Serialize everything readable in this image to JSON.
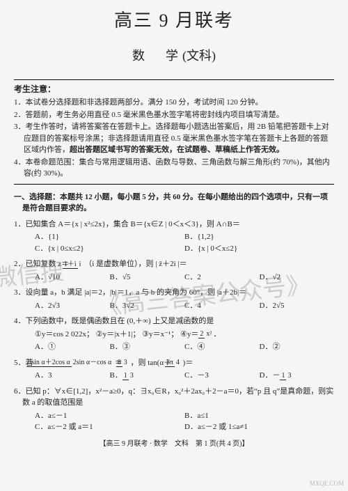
{
  "header": {
    "title": "高三 9 月联考",
    "subject": "数　学",
    "subject_paren": "(文科)"
  },
  "notice": {
    "head": "考生注意：",
    "items": [
      "1．本试卷分选择题和非选择题两部分。满分 150 分，考试时间 120 分钟。",
      "2．答题前，考生务必用直径 0.5 毫米黑色墨水签字笔将密封线内项目填写清楚。",
      "3．考生作答时，请将答案答在答题卡上。选择题每小题选出答案后，用 2B 铅笔把答题卡上对应题目的答案标号涂黑；非选择题请用直径 0.5 毫米黑色墨水签字笔在答题卡上各题的答题区域内作答，",
      "4．本卷命题范围：集合与常用逻辑用语、函数与导数、三角函数与解三角形(约 70%)，其他内容(约 30%)。"
    ],
    "bold_tail": "超出答题区域书写的答案无效，在试题卷、草稿纸上作答无效。"
  },
  "section1": {
    "head": "一、选择题：本题共 12 小题，每小题 5 分，共 60 分。在每小题给出的四个选项中，只有一项是符合题目要求的。"
  },
  "q1": {
    "stem": "1．已知集合 A＝{x | x²≤2x}，集合 B＝{x∈Z | 0＜x＜3}，则 A∩B＝",
    "a": "A．{1}",
    "b": "B．{1,2}",
    "c": "C．{x | 0≤x≤2}",
    "d": "D．{x | 0＜x≤2}"
  },
  "q2": {
    "stem_pre": "2．已知复数 z＝",
    "num": "1＋i",
    "den": "i",
    "stem_post": "（i 是虚数单位），则 | z̄＋2i |＝",
    "a": "A．√10",
    "b": "B．√5",
    "c": "C．2",
    "d": "D．√2"
  },
  "q3": {
    "stem": "3．设向量 a，b 满足 |a|＝2，|b|＝1，a 与 b 的夹角为 60°，则 |a＋2b|＝",
    "a": "A．2√3",
    "b": "B．3√2",
    "c": "C．4",
    "d": "D．2√5"
  },
  "q4": {
    "stem": "4．下列函数中，既是偶函数且在 (0,＋∞) 上又是减函数的是",
    "t1": "①y＝cos 2 022x；",
    "t2": "②y＝|x＋1|；",
    "t3": "③y＝x⁻¹；",
    "t4_pre": "④y＝",
    "t4_num": "2",
    "t4_den": "x²",
    "t4_post": "．",
    "a": "A．①",
    "b": "B．③",
    "c": "C．④",
    "d": "D．②"
  },
  "q5": {
    "stem_pre": "5．若 ",
    "num": "3sin α＋2cos α",
    "den": "2sin α－cos α",
    "eq": "＝",
    "num2": "8",
    "den2": "3",
    "mid": "，则 tan(α＋",
    "num3": "3π",
    "den3": "4",
    "post": ")＝",
    "a": "A．3",
    "b_pre": "B．",
    "b_num": "1",
    "b_den": "3",
    "c": "C．－3",
    "d_pre": "D．－",
    "d_num": "1",
    "d_den": "3"
  },
  "q6": {
    "stem": "6．已知 p：∀x∈[1,2]，x²－a≥0，q：∃x₀∈R，x₀²＋2ax₀＋2－a＝0，若“p 且 q”是真命题，则实数 a 的取值范围是",
    "a": "A．a≤－1",
    "b": "B．a≤1",
    "c": "C．a≤－2 或 a＝1",
    "d": "D．a≤－2 或 1≤a≠1"
  },
  "footer": "【高三 9 月联考 · 数学　文科　第 1 页(共 4 页)】",
  "wm_logo": "MXQE.COM"
}
